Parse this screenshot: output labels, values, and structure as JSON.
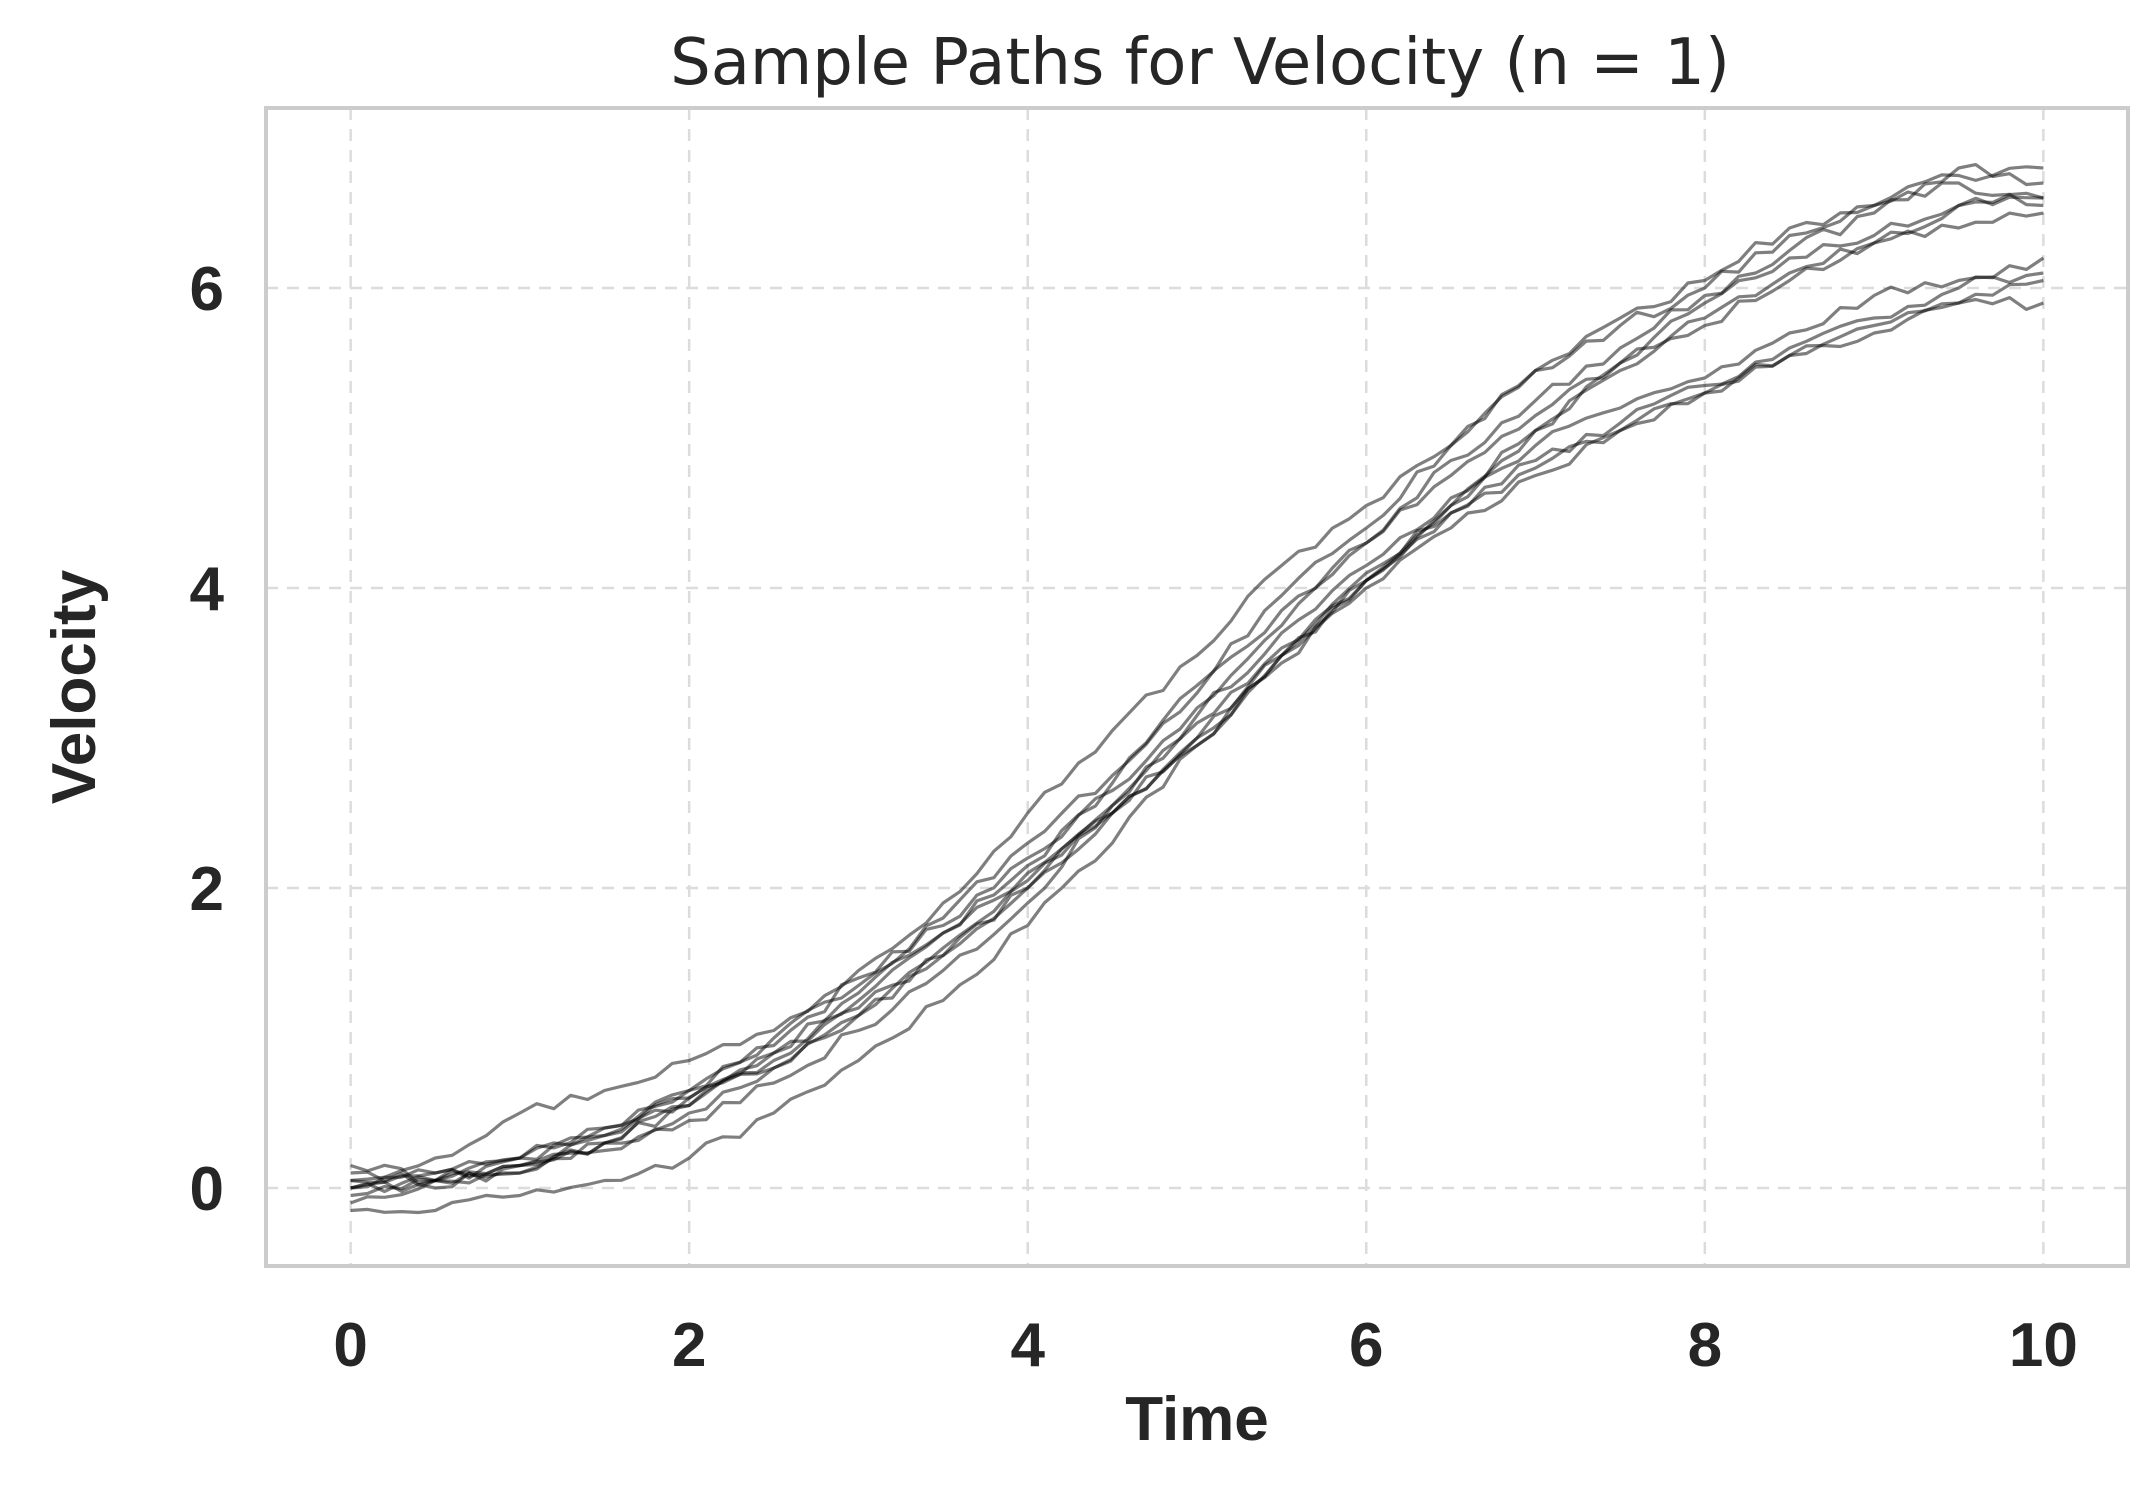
{
  "chart_data": {
    "type": "line",
    "title": "Sample Paths for Velocity (n = 1)",
    "xlabel": "Time",
    "ylabel": "Velocity",
    "xlim": [
      -0.5,
      10.5
    ],
    "ylim": [
      -0.52,
      7.2
    ],
    "xticks": [
      0,
      2,
      4,
      6,
      8,
      10
    ],
    "yticks": [
      0,
      2,
      4,
      6
    ],
    "grid": true,
    "series": [
      {
        "x": [
          0,
          0.5,
          1,
          1.5,
          2,
          2.5,
          3,
          3.5,
          4,
          4.5,
          5,
          5.5,
          6,
          6.5,
          7,
          7.5,
          8,
          8.5,
          9,
          9.5,
          10
        ],
        "values": [
          0.05,
          0.2,
          0.5,
          0.65,
          0.85,
          1.05,
          1.45,
          1.9,
          2.5,
          3.05,
          3.55,
          4.15,
          4.55,
          4.95,
          5.45,
          5.75,
          6.0,
          6.35,
          6.55,
          6.7,
          6.55
        ]
      },
      {
        "x": [
          0,
          0.5,
          1,
          1.5,
          2,
          2.5,
          3,
          3.5,
          4,
          4.5,
          5,
          5.5,
          6,
          6.5,
          7,
          7.5,
          8,
          8.5,
          9,
          9.5,
          10
        ],
        "values": [
          0.15,
          0.05,
          0.1,
          0.3,
          0.55,
          0.9,
          1.3,
          1.7,
          2.15,
          2.7,
          3.35,
          3.95,
          4.4,
          4.95,
          5.45,
          5.8,
          6.05,
          6.4,
          6.55,
          6.75,
          6.8
        ]
      },
      {
        "x": [
          0,
          0.5,
          1,
          1.5,
          2,
          2.5,
          3,
          3.5,
          4,
          4.5,
          5,
          5.5,
          6,
          6.5,
          7,
          7.5,
          8,
          8.5,
          9,
          9.5,
          10
        ],
        "values": [
          0.0,
          0.1,
          0.15,
          0.35,
          0.65,
          0.95,
          1.4,
          1.75,
          2.2,
          2.65,
          3.2,
          3.75,
          4.3,
          4.85,
          5.25,
          5.6,
          5.95,
          6.25,
          6.5,
          6.8,
          6.7
        ]
      },
      {
        "x": [
          0,
          0.5,
          1,
          1.5,
          2,
          2.5,
          3,
          3.5,
          4,
          4.5,
          5,
          5.5,
          6,
          6.5,
          7,
          7.5,
          8,
          8.5,
          9,
          9.5,
          10
        ],
        "values": [
          -0.05,
          0.05,
          0.2,
          0.4,
          0.6,
          0.85,
          1.25,
          1.7,
          2.1,
          2.5,
          3.0,
          3.5,
          4.05,
          4.55,
          5.05,
          5.5,
          5.9,
          6.2,
          6.35,
          6.55,
          6.6
        ]
      },
      {
        "x": [
          0,
          0.5,
          1,
          1.5,
          2,
          2.5,
          3,
          3.5,
          4,
          4.5,
          5,
          5.5,
          6,
          6.5,
          7,
          7.5,
          8,
          8.5,
          9,
          9.5,
          10
        ],
        "values": [
          0.05,
          0.0,
          0.15,
          0.3,
          0.55,
          0.9,
          1.2,
          1.55,
          2.0,
          2.55,
          3.1,
          3.6,
          4.05,
          4.5,
          4.85,
          5.1,
          5.35,
          5.6,
          5.8,
          6.0,
          6.2
        ]
      },
      {
        "x": [
          0,
          0.5,
          1,
          1.5,
          2,
          2.5,
          3,
          3.5,
          4,
          4.5,
          5,
          5.5,
          6,
          6.5,
          7,
          7.5,
          8,
          8.5,
          9,
          9.5,
          10
        ],
        "values": [
          0.0,
          0.1,
          0.2,
          0.35,
          0.6,
          0.8,
          1.15,
          1.6,
          2.05,
          2.5,
          2.95,
          3.55,
          4.0,
          4.4,
          4.75,
          5.05,
          5.3,
          5.55,
          5.7,
          5.9,
          6.05
        ]
      },
      {
        "x": [
          0,
          0.5,
          1,
          1.5,
          2,
          2.5,
          3,
          3.5,
          4,
          4.5,
          5,
          5.5,
          6,
          6.5,
          7,
          7.5,
          8,
          8.5,
          9,
          9.5,
          10
        ],
        "values": [
          -0.15,
          -0.15,
          -0.05,
          0.05,
          0.2,
          0.5,
          0.85,
          1.25,
          1.75,
          2.3,
          2.95,
          3.55,
          4.1,
          4.5,
          4.8,
          5.05,
          5.3,
          5.55,
          5.75,
          5.9,
          5.9
        ]
      },
      {
        "x": [
          0,
          0.5,
          1,
          1.5,
          2,
          2.5,
          3,
          3.5,
          4,
          4.5,
          5,
          5.5,
          6,
          6.5,
          7,
          7.5,
          8,
          8.5,
          9,
          9.5,
          10
        ],
        "values": [
          -0.1,
          0.05,
          0.1,
          0.3,
          0.45,
          0.7,
          1.05,
          1.45,
          1.9,
          2.55,
          3.15,
          3.7,
          4.15,
          4.6,
          5.05,
          5.45,
          5.8,
          6.1,
          6.3,
          6.4,
          6.5
        ]
      },
      {
        "x": [
          0,
          0.5,
          1,
          1.5,
          2,
          2.5,
          3,
          3.5,
          4,
          4.5,
          5,
          5.5,
          6,
          6.5,
          7,
          7.5,
          8,
          8.5,
          9,
          9.5,
          10
        ],
        "values": [
          0.1,
          0.05,
          0.2,
          0.4,
          0.65,
          1.0,
          1.35,
          1.8,
          2.3,
          2.75,
          3.3,
          3.85,
          4.3,
          4.75,
          5.15,
          5.5,
          5.75,
          6.05,
          6.3,
          6.55,
          6.6
        ]
      },
      {
        "x": [
          0,
          0.5,
          1,
          1.5,
          2,
          2.5,
          3,
          3.5,
          4,
          4.5,
          5,
          5.5,
          6,
          6.5,
          7,
          7.5,
          8,
          8.5,
          9,
          9.5,
          10
        ],
        "values": [
          0.0,
          0.05,
          0.15,
          0.25,
          0.5,
          0.8,
          1.15,
          1.55,
          2.0,
          2.5,
          3.0,
          3.55,
          4.05,
          4.55,
          4.95,
          5.2,
          5.4,
          5.7,
          5.95,
          6.05,
          6.1
        ]
      }
    ]
  }
}
